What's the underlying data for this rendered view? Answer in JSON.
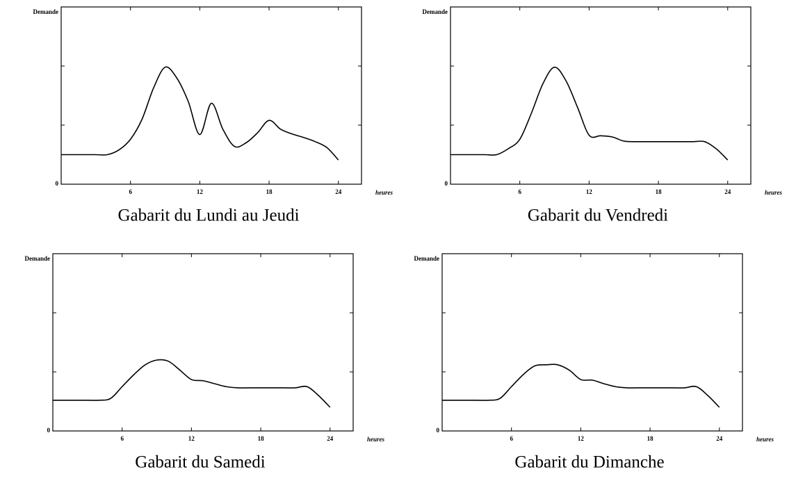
{
  "chart_data": [
    {
      "type": "line",
      "title": "Gabarit du Lundi au Jeudi",
      "y_label": "Demande",
      "x_label": "heures",
      "x": [
        0,
        1,
        2,
        3,
        4,
        5,
        6,
        7,
        8,
        9,
        10,
        11,
        12,
        13,
        14,
        15,
        16,
        17,
        18,
        19,
        20,
        21,
        22,
        23,
        24
      ],
      "values": [
        0.5,
        0.5,
        0.5,
        0.5,
        0.5,
        0.58,
        0.76,
        1.1,
        1.63,
        1.98,
        1.8,
        1.4,
        0.84,
        1.37,
        0.93,
        0.64,
        0.7,
        0.87,
        1.08,
        0.93,
        0.85,
        0.79,
        0.72,
        0.62,
        0.41
      ],
      "color": "#000000",
      "xlim": [
        0,
        26
      ],
      "ylim": [
        0,
        3
      ],
      "xticks": [
        6,
        12,
        18,
        24
      ],
      "yticks": [
        0
      ],
      "ytick_marks": [
        1,
        2
      ]
    },
    {
      "type": "line",
      "title": "Gabarit du Vendredi",
      "y_label": "Demande",
      "x_label": "heures",
      "x": [
        0,
        1,
        2,
        3,
        4,
        5,
        6,
        7,
        8,
        9,
        10,
        11,
        12,
        13,
        14,
        15,
        16,
        17,
        18,
        19,
        20,
        21,
        22,
        23,
        24
      ],
      "values": [
        0.5,
        0.5,
        0.5,
        0.5,
        0.5,
        0.6,
        0.76,
        1.2,
        1.7,
        1.98,
        1.75,
        1.3,
        0.83,
        0.82,
        0.8,
        0.73,
        0.72,
        0.72,
        0.72,
        0.72,
        0.72,
        0.72,
        0.72,
        0.6,
        0.41
      ],
      "color": "#000000",
      "xlim": [
        0,
        26
      ],
      "ylim": [
        0,
        3
      ],
      "xticks": [
        6,
        12,
        18,
        24
      ],
      "yticks": [
        0
      ],
      "ytick_marks": [
        1,
        2
      ]
    },
    {
      "type": "line",
      "title": "Gabarit du Samedi",
      "y_label": "Demande",
      "x_label": "heures",
      "x": [
        0,
        1,
        2,
        3,
        4,
        5,
        6,
        7,
        8,
        9,
        10,
        11,
        12,
        13,
        14,
        15,
        16,
        17,
        18,
        19,
        20,
        21,
        22,
        23,
        24
      ],
      "values": [
        0.52,
        0.52,
        0.52,
        0.52,
        0.52,
        0.55,
        0.75,
        0.95,
        1.12,
        1.2,
        1.18,
        1.03,
        0.87,
        0.85,
        0.8,
        0.75,
        0.73,
        0.73,
        0.73,
        0.73,
        0.73,
        0.73,
        0.75,
        0.6,
        0.4
      ],
      "color": "#000000",
      "xlim": [
        0,
        26
      ],
      "ylim": [
        0,
        3
      ],
      "xticks": [
        6,
        12,
        18,
        24
      ],
      "yticks": [
        0
      ],
      "ytick_marks": [
        1,
        2
      ]
    },
    {
      "type": "line",
      "title": "Gabarit du Dimanche",
      "y_label": "Demande",
      "x_label": "heures",
      "x": [
        0,
        1,
        2,
        3,
        4,
        5,
        6,
        7,
        8,
        9,
        10,
        11,
        12,
        13,
        14,
        15,
        16,
        17,
        18,
        19,
        20,
        21,
        22,
        23,
        24
      ],
      "values": [
        0.52,
        0.52,
        0.52,
        0.52,
        0.52,
        0.55,
        0.75,
        0.95,
        1.1,
        1.12,
        1.12,
        1.03,
        0.87,
        0.86,
        0.8,
        0.75,
        0.73,
        0.73,
        0.73,
        0.73,
        0.73,
        0.73,
        0.75,
        0.6,
        0.4
      ],
      "color": "#000000",
      "xlim": [
        0,
        26
      ],
      "ylim": [
        0,
        3
      ],
      "xticks": [
        6,
        12,
        18,
        24
      ],
      "yticks": [
        0
      ],
      "ytick_marks": [
        1,
        2
      ]
    }
  ]
}
